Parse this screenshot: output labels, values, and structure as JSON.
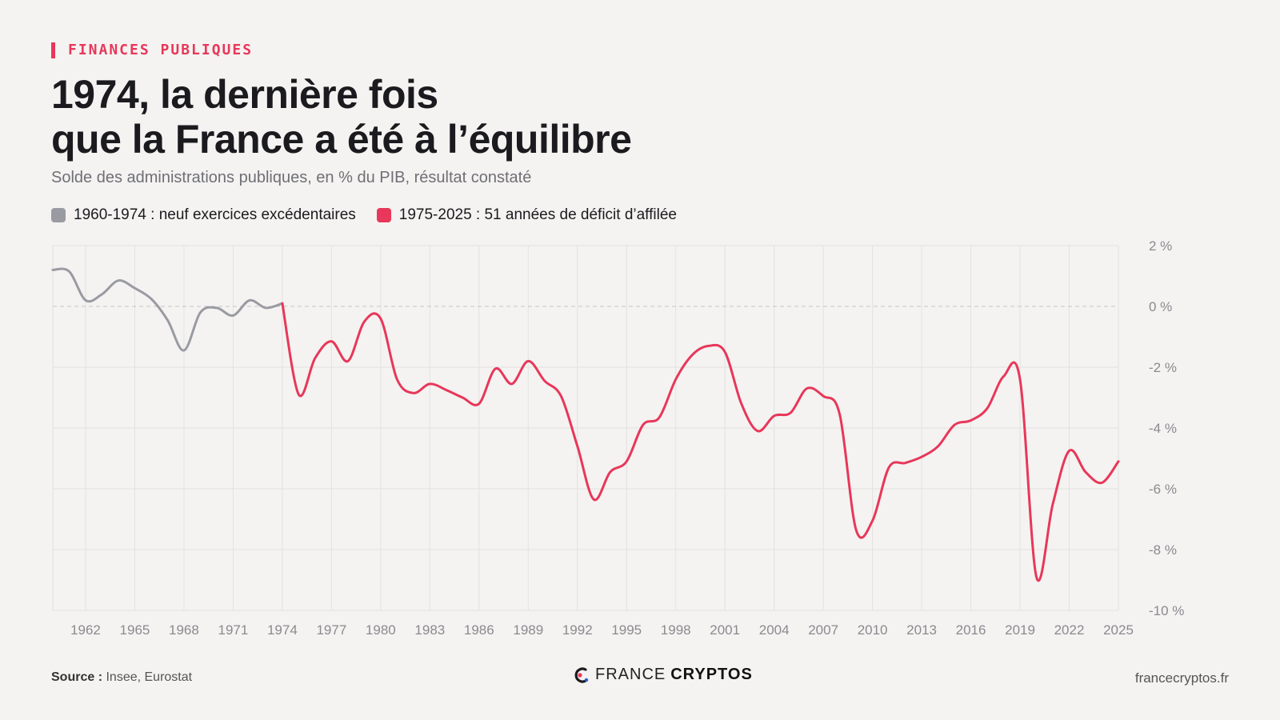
{
  "header": {
    "kicker": "FINANCES PUBLIQUES",
    "title_line1": "1974, la dernière fois",
    "title_line2": "que la France a été à l’équilibre",
    "subtitle": "Solde des administrations publiques, en % du PIB, résultat constaté"
  },
  "legend": [
    {
      "label": "1960-1974 : neuf exercices excédentaires",
      "color": "#9a9ba2"
    },
    {
      "label": "1975-2025 : 51 années de déficit d’affilée",
      "color": "#e8375a"
    }
  ],
  "colors": {
    "accent": "#e8375a",
    "grey_series": "#9a9ba2",
    "grid": "#e2e2e0",
    "background": "#f4f3f1"
  },
  "chart_data": {
    "type": "line",
    "title": "1974, la dernière fois que la France a été à l’équilibre",
    "subtitle": "Solde des administrations publiques, en % du PIB, résultat constaté",
    "xlabel": "",
    "ylabel": "",
    "xlim": [
      1960,
      2025
    ],
    "ylim": [
      -10,
      2
    ],
    "x_ticks": [
      "1962",
      "1965",
      "1968",
      "1971",
      "1974",
      "1977",
      "1980",
      "1983",
      "1986",
      "1989",
      "1992",
      "1995",
      "1998",
      "2001",
      "2004",
      "2007",
      "2010",
      "2013",
      "2016",
      "2019",
      "2022",
      "2025"
    ],
    "y_ticks": [
      "2 %",
      "0 %",
      "-2 %",
      "-4 %",
      "-6 %",
      "-8 %",
      "-10 %"
    ],
    "y_tick_values": [
      2,
      0,
      -2,
      -4,
      -6,
      -8,
      -10
    ],
    "grid": true,
    "legend_position": "top-left",
    "series": [
      {
        "name": "1960-1974 : neuf exercices excédentaires",
        "color": "#9a9ba2",
        "x": [
          1960,
          1961,
          1962,
          1963,
          1964,
          1965,
          1966,
          1967,
          1968,
          1969,
          1970,
          1971,
          1972,
          1973,
          1974
        ],
        "y": [
          1.2,
          1.15,
          0.2,
          0.4,
          0.85,
          0.6,
          0.25,
          -0.45,
          -1.45,
          -0.2,
          -0.05,
          -0.3,
          0.2,
          -0.05,
          0.1
        ]
      },
      {
        "name": "1975-2025 : 51 années de déficit d’affilée",
        "color": "#e8375a",
        "x": [
          1974,
          1975,
          1976,
          1977,
          1978,
          1979,
          1980,
          1981,
          1982,
          1983,
          1984,
          1985,
          1986,
          1987,
          1988,
          1989,
          1990,
          1991,
          1992,
          1993,
          1994,
          1995,
          1996,
          1997,
          1998,
          1999,
          2000,
          2001,
          2002,
          2003,
          2004,
          2005,
          2006,
          2007,
          2008,
          2009,
          2010,
          2011,
          2012,
          2013,
          2014,
          2015,
          2016,
          2017,
          2018,
          2019,
          2020,
          2021,
          2022,
          2023,
          2024,
          2025
        ],
        "y": [
          0.1,
          -2.9,
          -1.7,
          -1.15,
          -1.8,
          -0.5,
          -0.4,
          -2.4,
          -2.85,
          -2.55,
          -2.75,
          -3.0,
          -3.2,
          -2.05,
          -2.55,
          -1.8,
          -2.45,
          -2.95,
          -4.6,
          -6.35,
          -5.45,
          -5.1,
          -3.9,
          -3.65,
          -2.4,
          -1.6,
          -1.3,
          -1.5,
          -3.2,
          -4.1,
          -3.6,
          -3.5,
          -2.7,
          -2.95,
          -3.55,
          -7.35,
          -7.05,
          -5.3,
          -5.15,
          -4.95,
          -4.6,
          -3.9,
          -3.75,
          -3.35,
          -2.3,
          -2.4,
          -8.9,
          -6.5,
          -4.75,
          -5.45,
          -5.8,
          -5.1
        ]
      }
    ]
  },
  "footer": {
    "source_label": "Source :",
    "source_text": "Insee, Eurostat",
    "brand_part1": "FRANCE",
    "brand_part2": "CRYPTOS",
    "url": "francecryptos.fr"
  }
}
